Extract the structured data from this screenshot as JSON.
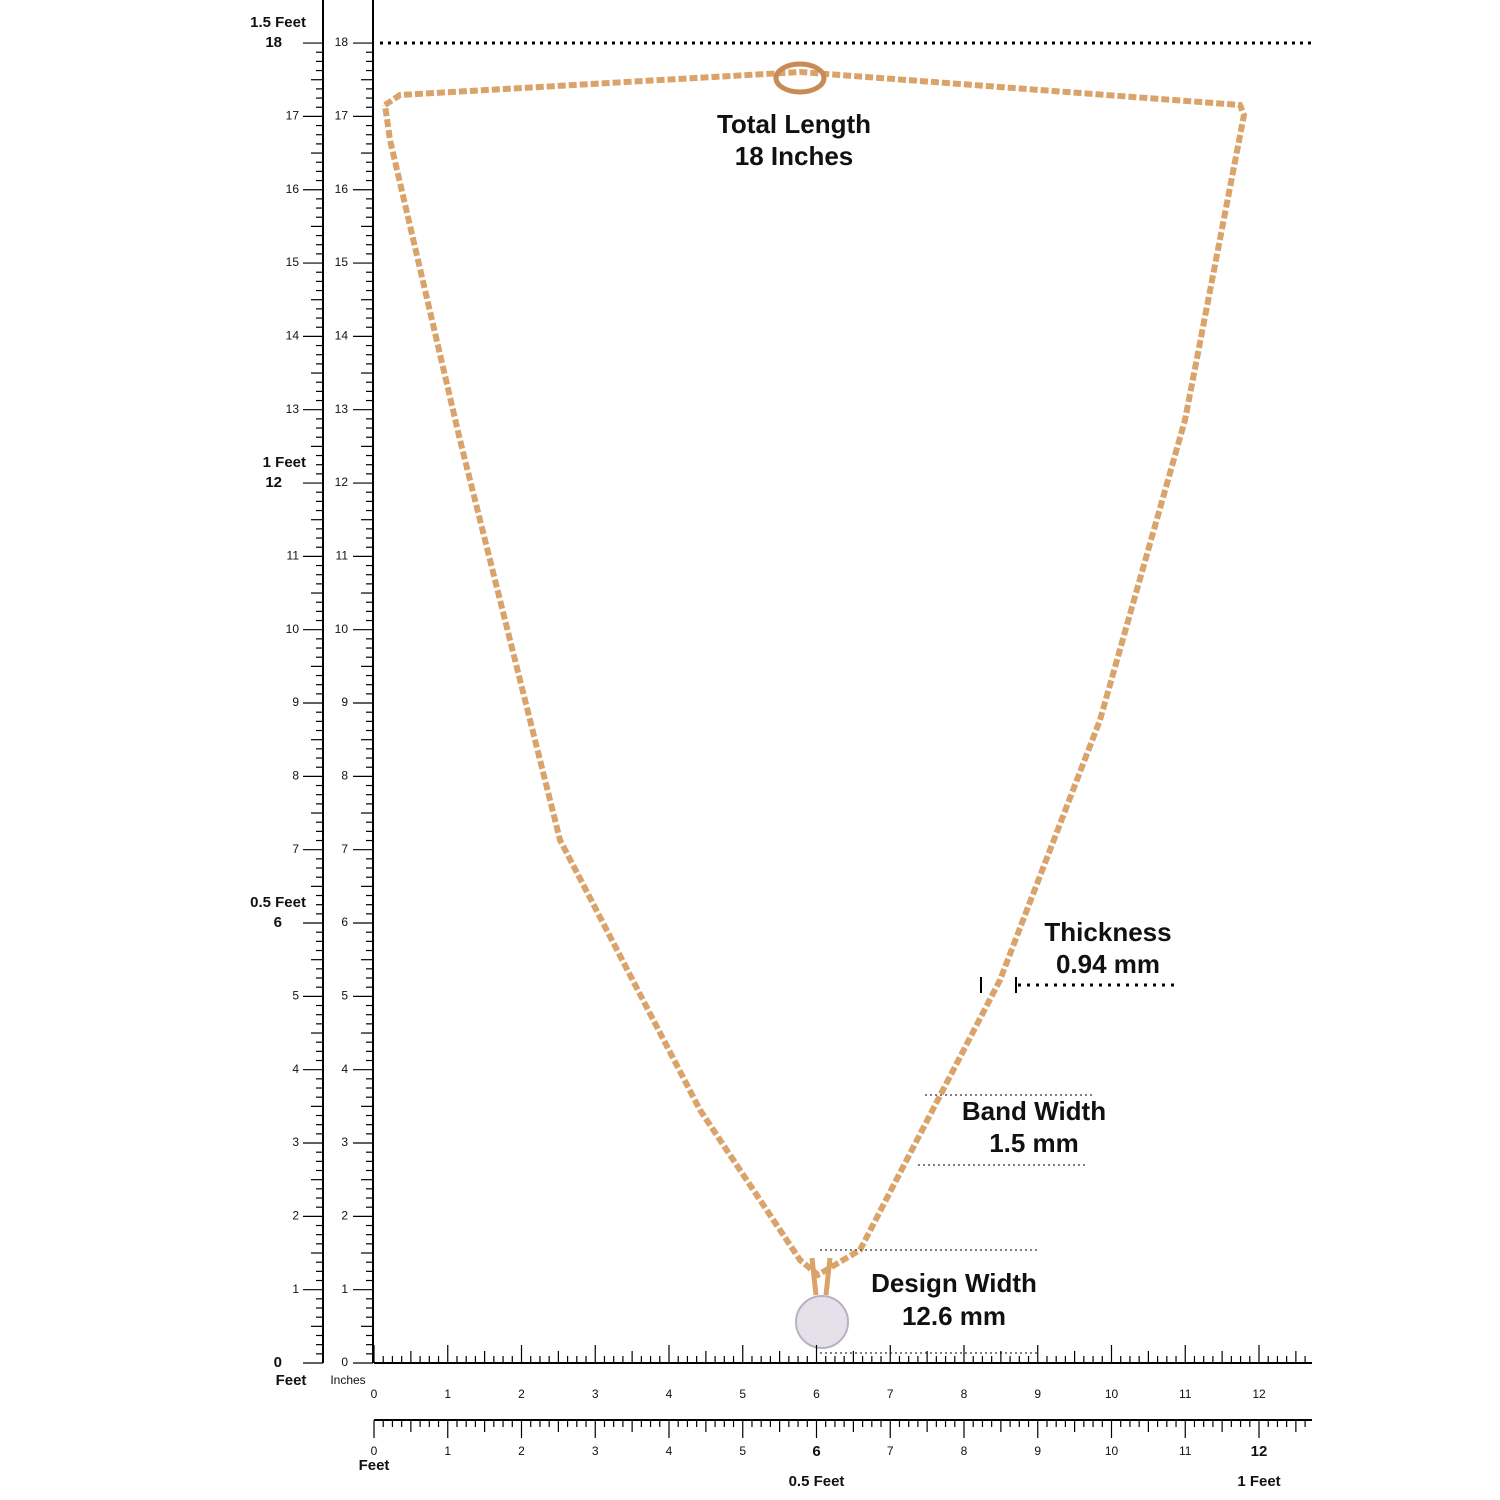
{
  "vertical_ruler": {
    "outer_ticks": [
      0,
      1,
      2,
      3,
      4,
      5,
      6,
      7,
      8,
      9,
      10,
      11,
      12,
      13,
      14,
      15,
      16,
      17,
      18
    ],
    "inner_ticks": [
      0,
      1,
      2,
      3,
      4,
      5,
      6,
      7,
      8,
      9,
      10,
      11,
      12,
      13,
      14,
      15,
      16,
      17,
      18
    ],
    "feet_marks": [
      {
        "label": "1.5 Feet",
        "inches": 18
      },
      {
        "label": "1 Feet",
        "inches": 12
      },
      {
        "label": "0.5 Feet",
        "inches": 6
      }
    ],
    "zero_label": "Feet",
    "inner_unit": "Inches"
  },
  "horizontal_ruler": {
    "top_ticks": [
      0,
      1,
      2,
      3,
      4,
      5,
      6,
      7,
      8,
      9,
      10,
      11,
      12
    ],
    "bottom_ticks": [
      0,
      1,
      2,
      3,
      4,
      5,
      6,
      7,
      8,
      9,
      10,
      11,
      12
    ],
    "zero_label": "Feet",
    "feet_marks": [
      {
        "label": "0.5 Feet",
        "inches": 6
      },
      {
        "label": "1 Feet",
        "inches": 12
      }
    ]
  },
  "annotations": {
    "total_length": [
      "Total Length",
      "18 Inches"
    ],
    "thickness": [
      "Thickness",
      "0.94 mm"
    ],
    "band_width": [
      "Band Width",
      "1.5 mm"
    ],
    "design_width": [
      "Design Width",
      "12.6 mm"
    ]
  }
}
